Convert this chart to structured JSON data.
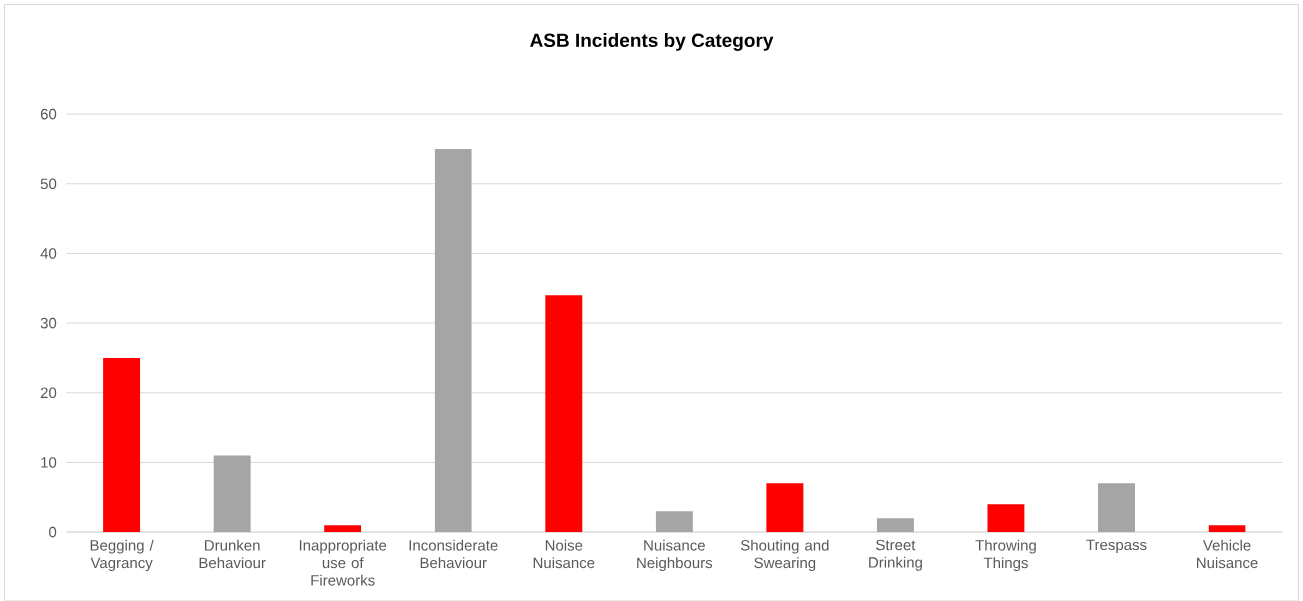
{
  "chart_data": {
    "type": "bar",
    "title": "ASB Incidents by Category",
    "categories": [
      "Begging / Vagrancy",
      "Drunken Behaviour",
      "Inappropriate use of Fireworks",
      "Inconsiderate Behaviour",
      "Noise Nuisance",
      "Nuisance Neighbours",
      "Shouting and Swearing",
      "Street Drinking",
      "Throwing Things",
      "Trespass",
      "Vehicle Nuisance"
    ],
    "values": [
      25,
      11,
      1,
      55,
      34,
      3,
      7,
      2,
      4,
      7,
      1
    ],
    "colors": [
      "#ff0000",
      "#a5a5a5",
      "#ff0000",
      "#a5a5a5",
      "#ff0000",
      "#a5a5a5",
      "#ff0000",
      "#a5a5a5",
      "#ff0000",
      "#a5a5a5",
      "#ff0000"
    ],
    "ylim": [
      0,
      60
    ],
    "yticks": [
      0,
      10,
      20,
      30,
      40,
      50,
      60
    ],
    "grid": "y"
  }
}
